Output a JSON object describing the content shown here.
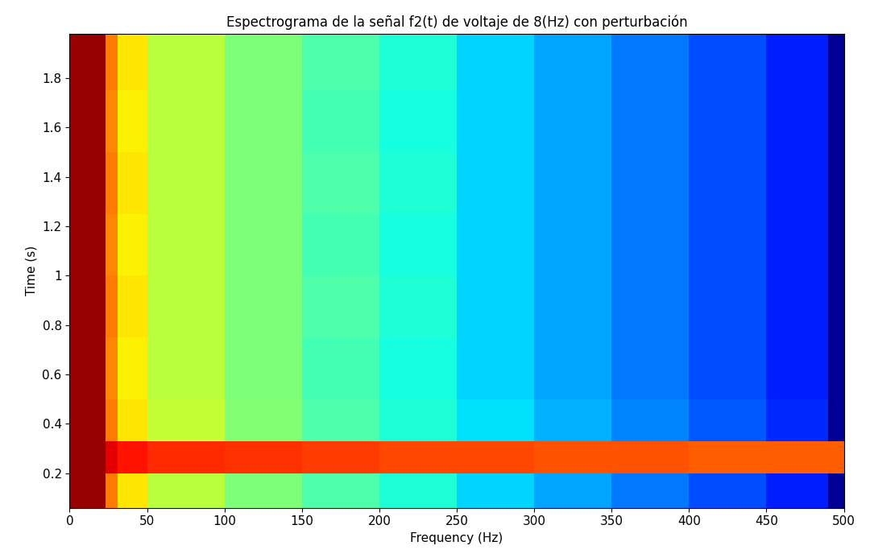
{
  "chart_data": {
    "type": "heatmap",
    "title": "Espectrograma de la señal f2(t) de voltaje de 8(Hz) con perturbación",
    "x_label": "Frequency (Hz)",
    "y_label": "Time (s)",
    "x_edges": [
      0,
      23,
      31,
      50,
      100,
      150,
      200,
      250,
      300,
      350,
      400,
      450,
      490,
      500
    ],
    "y_edges": [
      0.06,
      0.2,
      0.33,
      0.5,
      0.75,
      1.0,
      1.25,
      1.5,
      1.75,
      1.98
    ],
    "cells": [
      [
        -2,
        -20,
        -30,
        -38,
        -45,
        -50,
        -55,
        -60,
        -64,
        -68,
        -72,
        -76,
        -88
      ],
      [
        -2,
        -8,
        -10,
        -12,
        -13,
        -14,
        -15,
        -15,
        -16,
        -16,
        -17,
        -17,
        -17
      ],
      [
        -2,
        -20,
        -30,
        -37,
        -44,
        -50,
        -55,
        -59,
        -63,
        -67,
        -71,
        -75,
        -88
      ],
      [
        -2,
        -21,
        -31,
        -38,
        -45,
        -51,
        -56,
        -60,
        -64,
        -68,
        -72,
        -76,
        -88
      ],
      [
        -2,
        -20,
        -30,
        -38,
        -45,
        -50,
        -55,
        -60,
        -64,
        -68,
        -72,
        -76,
        -88
      ],
      [
        -2,
        -21,
        -31,
        -38,
        -45,
        -51,
        -56,
        -60,
        -64,
        -68,
        -72,
        -76,
        -88
      ],
      [
        -2,
        -20,
        -30,
        -38,
        -45,
        -50,
        -55,
        -60,
        -64,
        -68,
        -72,
        -76,
        -88
      ],
      [
        -2,
        -21,
        -31,
        -38,
        -45,
        -51,
        -56,
        -60,
        -64,
        -68,
        -72,
        -76,
        -88
      ],
      [
        -2,
        -20,
        -30,
        -38,
        -45,
        -50,
        -55,
        -60,
        -64,
        -68,
        -72,
        -76,
        -88
      ]
    ],
    "color_range": [
      -90,
      0
    ],
    "xlim": [
      0,
      500
    ],
    "ylim": [
      0.06,
      1.98
    ],
    "xticks": [
      0,
      50,
      100,
      150,
      200,
      250,
      300,
      350,
      400,
      450,
      500
    ],
    "yticks": [
      0.2,
      0.4,
      0.6,
      0.8,
      1,
      1.2,
      1.4,
      1.6,
      1.8
    ]
  }
}
